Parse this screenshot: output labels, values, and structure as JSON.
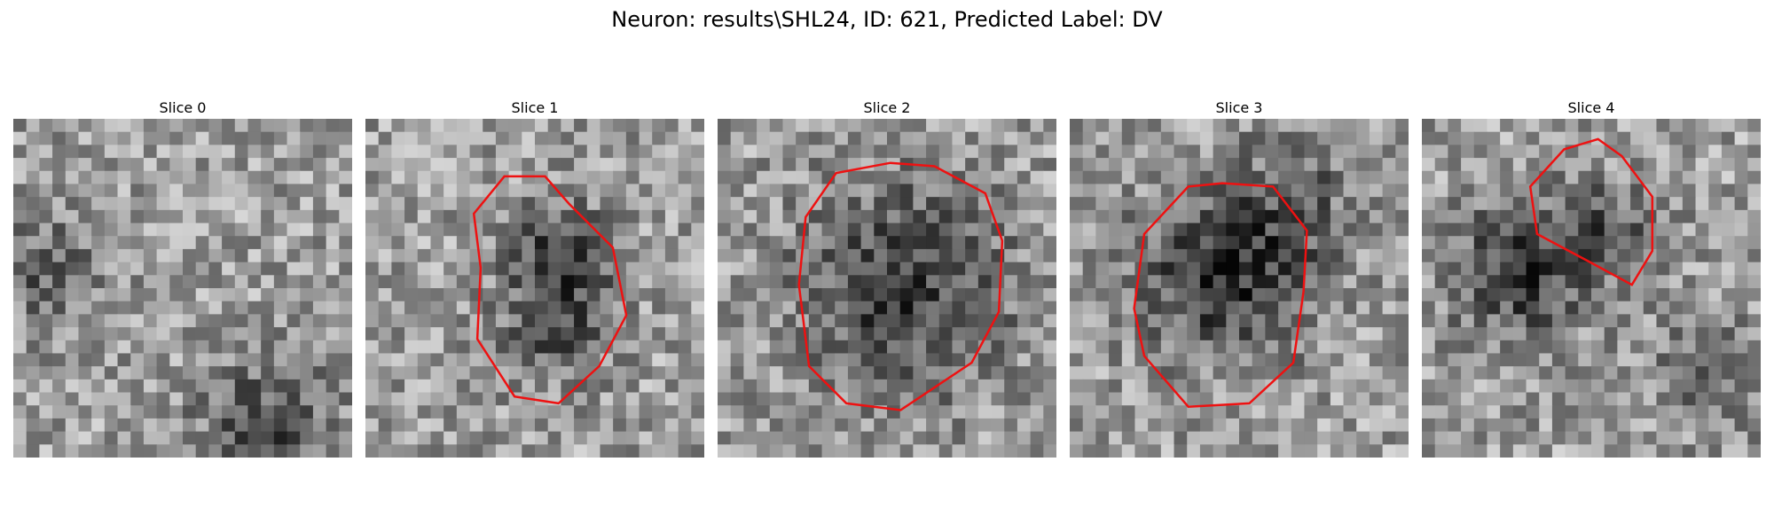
{
  "figure": {
    "title": "Neuron: results\\SHL24, ID: 621, Predicted Label: DV"
  },
  "panels": [
    {
      "title": "Slice 0",
      "contour": []
    },
    {
      "title": "Slice 1",
      "contour": [
        [
          0.41,
          0.17
        ],
        [
          0.32,
          0.28
        ],
        [
          0.34,
          0.44
        ],
        [
          0.33,
          0.65
        ],
        [
          0.44,
          0.82
        ],
        [
          0.57,
          0.84
        ],
        [
          0.69,
          0.73
        ],
        [
          0.77,
          0.58
        ],
        [
          0.73,
          0.38
        ],
        [
          0.6,
          0.25
        ],
        [
          0.53,
          0.17
        ]
      ]
    },
    {
      "title": "Slice 2",
      "contour": [
        [
          0.35,
          0.16
        ],
        [
          0.26,
          0.29
        ],
        [
          0.24,
          0.49
        ],
        [
          0.27,
          0.73
        ],
        [
          0.38,
          0.84
        ],
        [
          0.54,
          0.86
        ],
        [
          0.75,
          0.72
        ],
        [
          0.83,
          0.57
        ],
        [
          0.84,
          0.36
        ],
        [
          0.79,
          0.22
        ],
        [
          0.64,
          0.14
        ],
        [
          0.51,
          0.13
        ]
      ]
    },
    {
      "title": "Slice 3",
      "contour": [
        [
          0.35,
          0.2
        ],
        [
          0.22,
          0.34
        ],
        [
          0.19,
          0.56
        ],
        [
          0.22,
          0.7
        ],
        [
          0.35,
          0.85
        ],
        [
          0.53,
          0.84
        ],
        [
          0.66,
          0.72
        ],
        [
          0.69,
          0.51
        ],
        [
          0.7,
          0.33
        ],
        [
          0.6,
          0.2
        ],
        [
          0.45,
          0.19
        ]
      ]
    },
    {
      "title": "Slice 4",
      "contour": [
        [
          0.42,
          0.09
        ],
        [
          0.32,
          0.2
        ],
        [
          0.34,
          0.34
        ],
        [
          0.49,
          0.42
        ],
        [
          0.62,
          0.49
        ],
        [
          0.68,
          0.39
        ],
        [
          0.68,
          0.23
        ],
        [
          0.59,
          0.11
        ],
        [
          0.52,
          0.06
        ]
      ]
    }
  ]
}
